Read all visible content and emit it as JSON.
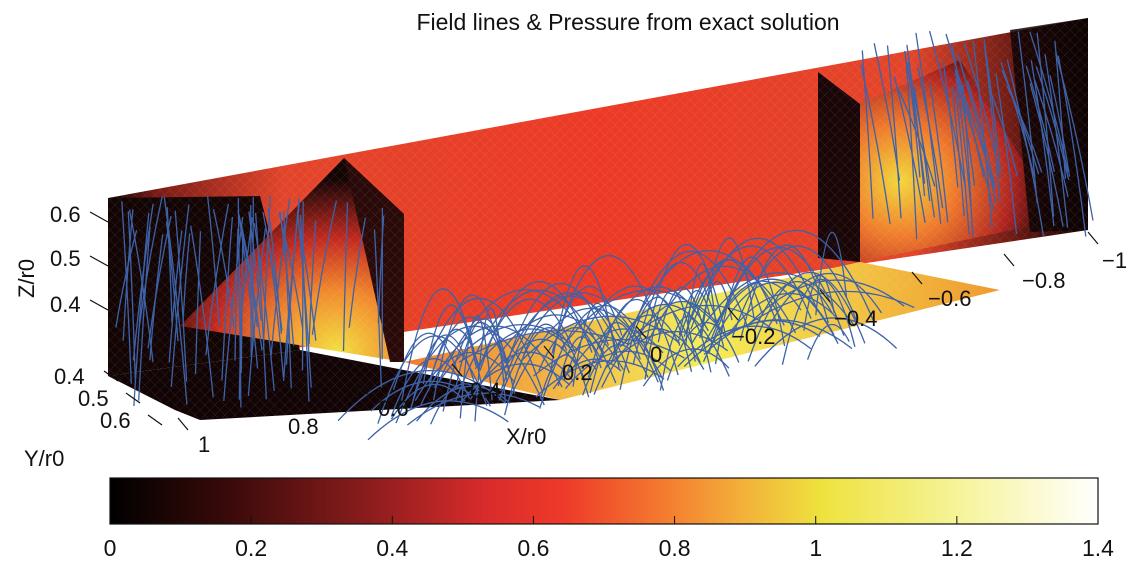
{
  "chart_data": {
    "type": "heatmap",
    "title": "Field lines & Pressure from exact solution",
    "xlabel": "X/r0",
    "ylabel": "Y/r0",
    "zlabel": "Z/r0",
    "x_ticks": [
      "1",
      "0.8",
      "0.6",
      "0.4",
      "0.2",
      "0",
      "−0.2",
      "−0.4",
      "−0.6",
      "−0.8",
      "−1"
    ],
    "y_ticks": [
      "0.4",
      "0.5",
      "0.6"
    ],
    "z_ticks": [
      "0.6",
      "0.5",
      "0.4"
    ],
    "colorbar": {
      "ticks": [
        "0",
        "0.2",
        "0.4",
        "0.6",
        "0.8",
        "1",
        "1.2",
        "1.4"
      ],
      "range": [
        0,
        1.4
      ],
      "colormap": [
        "#000000",
        "#3a0a0a",
        "#8a1c1c",
        "#d92b2b",
        "#ee3a2a",
        "#f4742e",
        "#f3b03a",
        "#eee23e",
        "#f6f49a",
        "#ffffff"
      ]
    },
    "series": [
      {
        "values": []
      }
    ],
    "field_line_color": "#3d62a8",
    "legend": "none",
    "grid": false
  }
}
